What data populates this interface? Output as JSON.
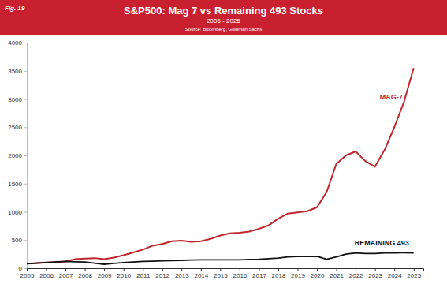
{
  "chart_data": {
    "type": "line",
    "figure_label": "Fig. 19",
    "title": "S&P500: Mag 7 vs Remaining 493 Stocks",
    "subtitle": "2005 - 2025",
    "source": "Source: Bloomberg, Goldman Sachs",
    "x": [
      2005,
      2005.5,
      2006,
      2006.5,
      2007,
      2007.5,
      2008,
      2008.5,
      2009,
      2009.5,
      2010,
      2010.5,
      2011,
      2011.5,
      2012,
      2012.5,
      2013,
      2013.5,
      2014,
      2014.5,
      2015,
      2015.5,
      2016,
      2016.5,
      2017,
      2017.5,
      2018,
      2018.5,
      2019,
      2019.5,
      2020,
      2020.5,
      2021,
      2021.5,
      2022,
      2022.5,
      2023,
      2023.5,
      2024,
      2024.5,
      2025
    ],
    "series": [
      {
        "name": "MAG-7",
        "color": "#c0272d",
        "values": [
          80,
          90,
          100,
          110,
          120,
          160,
          170,
          180,
          160,
          190,
          230,
          280,
          330,
          400,
          430,
          480,
          490,
          470,
          480,
          520,
          580,
          620,
          630,
          650,
          700,
          760,
          880,
          970,
          990,
          1010,
          1080,
          1350,
          1850,
          2000,
          2070,
          1900,
          1800,
          2100,
          2500,
          2950,
          3550
        ]
      },
      {
        "name": "REMAINING 493",
        "color": "#111111",
        "values": [
          80,
          90,
          100,
          110,
          120,
          115,
          110,
          90,
          70,
          85,
          100,
          110,
          120,
          125,
          130,
          135,
          140,
          145,
          150,
          150,
          150,
          150,
          150,
          155,
          160,
          170,
          180,
          200,
          210,
          210,
          210,
          160,
          200,
          250,
          270,
          260,
          260,
          270,
          270,
          275,
          270
        ]
      }
    ],
    "xlim": [
      2005,
      2025.5
    ],
    "xticks": [
      2005,
      2006,
      2007,
      2008,
      2009,
      2010,
      2011,
      2012,
      2013,
      2014,
      2015,
      2016,
      2017,
      2018,
      2019,
      2020,
      2021,
      2022,
      2023,
      2024,
      2025
    ],
    "ylim": [
      0,
      4000
    ],
    "yticks": [
      0,
      500,
      1000,
      1500,
      2000,
      2500,
      3000,
      3500,
      4000
    ],
    "grid": false
  }
}
